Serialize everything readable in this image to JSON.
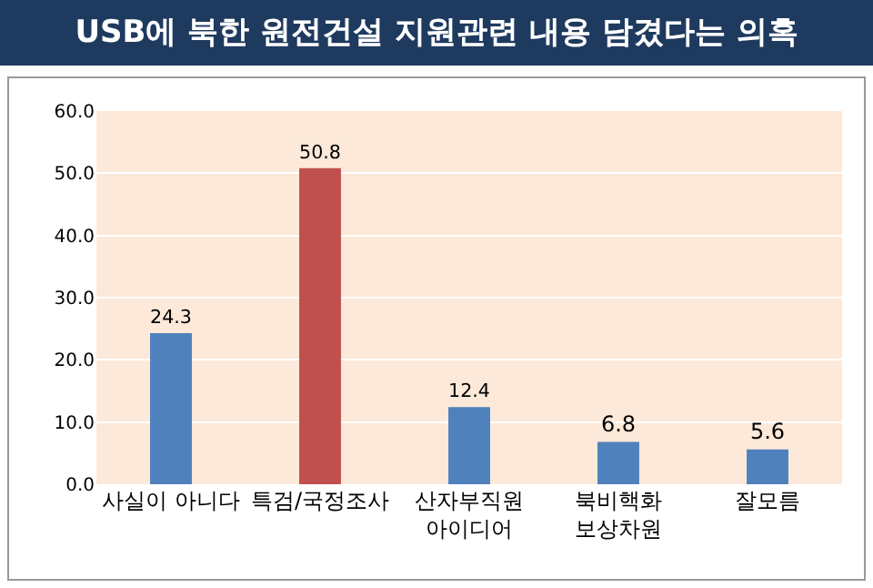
{
  "chart_data": {
    "type": "bar",
    "title": "USB에 북한 원전건설 지원관련 내용 담겼다는 의혹",
    "categories": [
      "사실이 아니다",
      "특검/국정조사",
      "산자부직원\n아이디어",
      "북비핵화\n보상차원",
      "잘모름"
    ],
    "values": [
      24.3,
      50.8,
      12.4,
      6.8,
      5.6
    ],
    "colors": [
      "#4f81bd",
      "#c0504d",
      "#4f81bd",
      "#4f81bd",
      "#4f81bd"
    ],
    "ylim": [
      0,
      60
    ],
    "yticks": [
      {
        "value": 0,
        "label": "0.0"
      },
      {
        "value": 10,
        "label": "10.0"
      },
      {
        "value": 20,
        "label": "20.0"
      },
      {
        "value": 30,
        "label": "30.0"
      },
      {
        "value": 40,
        "label": "40.0"
      },
      {
        "value": 50,
        "label": "50.0"
      },
      {
        "value": 60,
        "label": "60.0"
      }
    ],
    "grid": true,
    "data_labels": true
  }
}
